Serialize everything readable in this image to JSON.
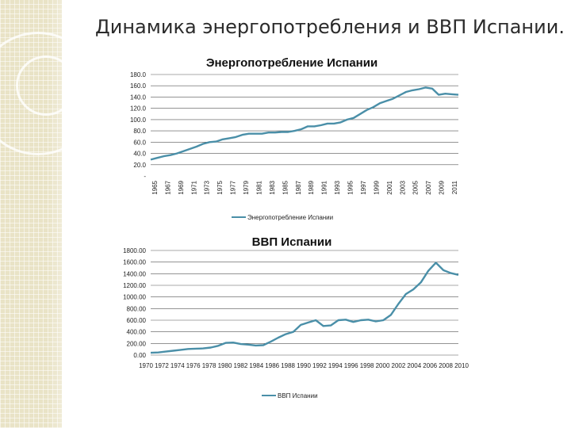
{
  "slide": {
    "title": "Динамика энергопотребления и ВВП Испании."
  },
  "colors": {
    "series": "#4a8fa8",
    "grid": "#555555",
    "background_strip": "#e9e3c6"
  },
  "chart_data": [
    {
      "type": "line",
      "title": "Энергопотребление Испании",
      "xlabel": "",
      "ylabel": "",
      "ylim": [
        0,
        180
      ],
      "y_ticks": [
        0,
        20,
        40,
        60,
        80,
        100,
        120,
        140,
        160,
        180
      ],
      "y_tick_labels": [
        "-",
        "20.0",
        "40.0",
        "60.0",
        "80.0",
        "100.0",
        "120.0",
        "140.0",
        "160.0",
        "180.0"
      ],
      "x_tick_labels": [
        "1965",
        "1967",
        "1969",
        "1971",
        "1973",
        "1975",
        "1977",
        "1979",
        "1981",
        "1983",
        "1985",
        "1987",
        "1989",
        "1991",
        "1993",
        "1995",
        "1997",
        "1999",
        "2001",
        "2003",
        "2005",
        "2007",
        "2009",
        "2011"
      ],
      "x_range": [
        1965,
        2012
      ],
      "grid": true,
      "legend_position": "bottom",
      "series": [
        {
          "name": "Энергопотребление Испании",
          "x": [
            1965,
            1966,
            1967,
            1968,
            1969,
            1970,
            1971,
            1972,
            1973,
            1974,
            1975,
            1976,
            1977,
            1978,
            1979,
            1980,
            1981,
            1982,
            1983,
            1984,
            1985,
            1986,
            1987,
            1988,
            1989,
            1990,
            1991,
            1992,
            1993,
            1994,
            1995,
            1996,
            1997,
            1998,
            1999,
            2000,
            2001,
            2002,
            2003,
            2004,
            2005,
            2006,
            2007,
            2008,
            2009,
            2010,
            2011,
            2012
          ],
          "values": [
            29,
            32,
            35,
            37,
            40,
            44,
            48,
            52,
            57,
            60,
            61,
            65,
            67,
            69,
            73,
            75,
            75,
            75,
            77,
            77,
            78,
            78,
            80,
            83,
            88,
            88,
            90,
            93,
            93,
            95,
            100,
            103,
            110,
            117,
            122,
            129,
            133,
            137,
            143,
            149,
            152,
            154,
            157,
            155,
            144,
            146,
            145,
            144
          ]
        }
      ]
    },
    {
      "type": "line",
      "title": "ВВП Испании",
      "xlabel": "",
      "ylabel": "",
      "ylim": [
        0,
        1800
      ],
      "y_ticks": [
        0,
        200,
        400,
        600,
        800,
        1000,
        1200,
        1400,
        1600,
        1800
      ],
      "y_tick_labels": [
        "0.00",
        "200.00",
        "400.00",
        "600.00",
        "800.00",
        "1000.00",
        "1200.00",
        "1400.00",
        "1600.00",
        "1800.00"
      ],
      "x_tick_labels": [
        "1970",
        "1972",
        "1974",
        "1976",
        "1978",
        "1980",
        "1982",
        "1984",
        "1986",
        "1988",
        "1990",
        "1992",
        "1994",
        "1996",
        "1998",
        "2000",
        "2002",
        "2004",
        "2006",
        "2008",
        "2010"
      ],
      "x_range": [
        1970,
        2011
      ],
      "grid": true,
      "legend_position": "bottom",
      "series": [
        {
          "name": "ВВП Испании",
          "x": [
            1970,
            1971,
            1972,
            1973,
            1974,
            1975,
            1976,
            1977,
            1978,
            1979,
            1980,
            1981,
            1982,
            1983,
            1984,
            1985,
            1986,
            1987,
            1988,
            1989,
            1990,
            1991,
            1992,
            1993,
            1994,
            1995,
            1996,
            1997,
            1998,
            1999,
            2000,
            2001,
            2002,
            2003,
            2004,
            2005,
            2006,
            2007,
            2008,
            2009,
            2010,
            2011
          ],
          "values": [
            40,
            45,
            60,
            75,
            90,
            105,
            110,
            115,
            130,
            160,
            210,
            215,
            190,
            180,
            165,
            170,
            230,
            300,
            360,
            400,
            520,
            560,
            600,
            500,
            510,
            600,
            610,
            570,
            600,
            610,
            580,
            600,
            690,
            880,
            1050,
            1130,
            1250,
            1450,
            1590,
            1460,
            1410,
            1380
          ]
        }
      ]
    }
  ]
}
